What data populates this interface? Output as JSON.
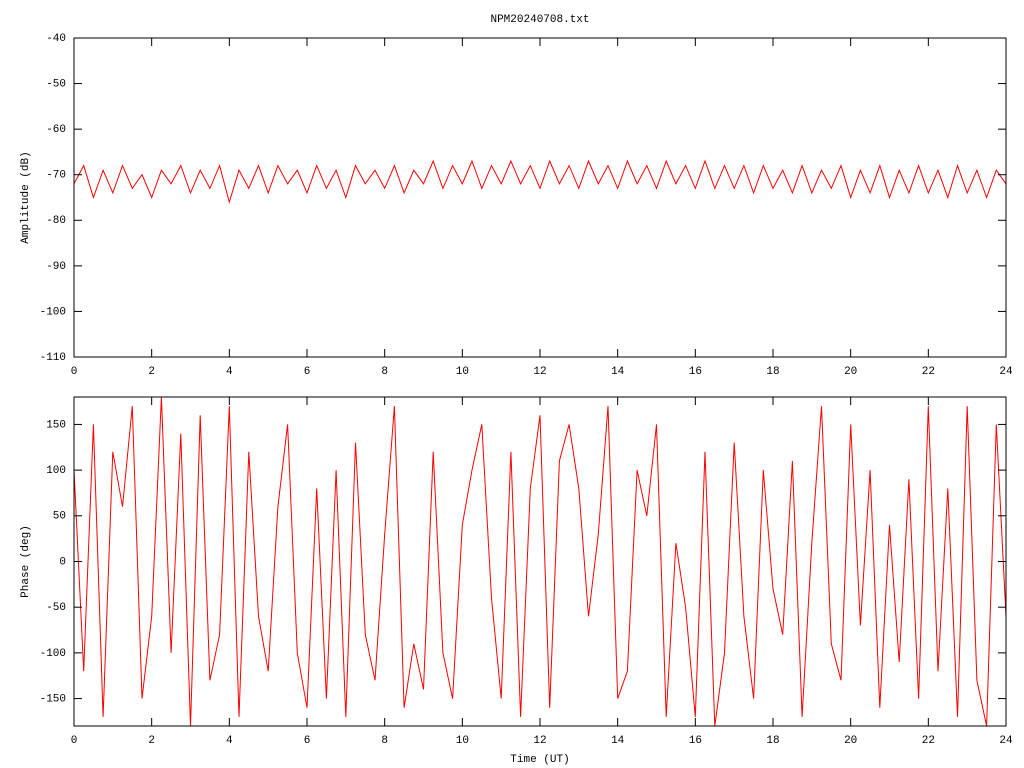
{
  "chart_data": [
    {
      "type": "line",
      "title": "NPM20240708.txt",
      "ylabel": "Amplitude (dB)",
      "xlim": [
        0,
        24
      ],
      "xticks": [
        0,
        2,
        4,
        6,
        8,
        10,
        12,
        14,
        16,
        18,
        20,
        22,
        24
      ],
      "ylim": [
        -110,
        -40
      ],
      "yticks": [
        -110,
        -100,
        -90,
        -80,
        -70,
        -60,
        -50,
        -40
      ],
      "x": [
        0,
        0.25,
        0.5,
        0.75,
        1,
        1.25,
        1.5,
        1.75,
        2,
        2.25,
        2.5,
        2.75,
        3,
        3.25,
        3.5,
        3.75,
        4,
        4.25,
        4.5,
        4.75,
        5,
        5.25,
        5.5,
        5.75,
        6,
        6.25,
        6.5,
        6.75,
        7,
        7.25,
        7.5,
        7.75,
        8,
        8.25,
        8.5,
        8.75,
        9,
        9.25,
        9.5,
        9.75,
        10,
        10.25,
        10.5,
        10.75,
        11,
        11.25,
        11.5,
        11.75,
        12,
        12.25,
        12.5,
        12.75,
        13,
        13.25,
        13.5,
        13.75,
        14,
        14.25,
        14.5,
        14.75,
        15,
        15.25,
        15.5,
        15.75,
        16,
        16.25,
        16.5,
        16.75,
        17,
        17.25,
        17.5,
        17.75,
        18,
        18.25,
        18.5,
        18.75,
        19,
        19.25,
        19.5,
        19.75,
        20,
        20.25,
        20.5,
        20.75,
        21,
        21.25,
        21.5,
        21.75,
        22,
        22.25,
        22.5,
        22.75,
        23,
        23.25,
        23.5,
        23.75,
        24
      ],
      "series": [
        {
          "color": "#ff0000",
          "values": [
            -72,
            -68,
            -75,
            -69,
            -74,
            -68,
            -73,
            -70,
            -75,
            -69,
            -72,
            -68,
            -74,
            -69,
            -73,
            -68,
            -76,
            -69,
            -73,
            -68,
            -74,
            -68,
            -72,
            -69,
            -74,
            -68,
            -73,
            -69,
            -75,
            -68,
            -72,
            -69,
            -73,
            -68,
            -74,
            -69,
            -72,
            -67,
            -73,
            -68,
            -72,
            -67,
            -73,
            -68,
            -72,
            -67,
            -72,
            -68,
            -73,
            -67,
            -72,
            -68,
            -73,
            -67,
            -72,
            -68,
            -73,
            -67,
            -72,
            -68,
            -73,
            -67,
            -72,
            -68,
            -73,
            -67,
            -73,
            -68,
            -73,
            -68,
            -74,
            -68,
            -73,
            -69,
            -74,
            -68,
            -74,
            -69,
            -73,
            -68,
            -75,
            -69,
            -74,
            -68,
            -75,
            -69,
            -74,
            -68,
            -74,
            -69,
            -75,
            -68,
            -74,
            -69,
            -75,
            -69,
            -72
          ]
        }
      ]
    },
    {
      "type": "line",
      "ylabel": "Phase (deg)",
      "xlabel": "Time (UT)",
      "xlim": [
        0,
        24
      ],
      "xticks": [
        0,
        2,
        4,
        6,
        8,
        10,
        12,
        14,
        16,
        18,
        20,
        22,
        24
      ],
      "ylim": [
        -180,
        180
      ],
      "yticks": [
        -150,
        -100,
        -50,
        0,
        50,
        100,
        150
      ],
      "x": [
        0,
        0.25,
        0.5,
        0.75,
        1,
        1.25,
        1.5,
        1.75,
        2,
        2.25,
        2.5,
        2.75,
        3,
        3.25,
        3.5,
        3.75,
        4,
        4.25,
        4.5,
        4.75,
        5,
        5.25,
        5.5,
        5.75,
        6,
        6.25,
        6.5,
        6.75,
        7,
        7.25,
        7.5,
        7.75,
        8,
        8.25,
        8.5,
        8.75,
        9,
        9.25,
        9.5,
        9.75,
        10,
        10.25,
        10.5,
        10.75,
        11,
        11.25,
        11.5,
        11.75,
        12,
        12.25,
        12.5,
        12.75,
        13,
        13.25,
        13.5,
        13.75,
        14,
        14.25,
        14.5,
        14.75,
        15,
        15.25,
        15.5,
        15.75,
        16,
        16.25,
        16.5,
        16.75,
        17,
        17.25,
        17.5,
        17.75,
        18,
        18.25,
        18.5,
        18.75,
        19,
        19.25,
        19.5,
        19.75,
        20,
        20.25,
        20.5,
        20.75,
        21,
        21.25,
        21.5,
        21.75,
        22,
        22.25,
        22.5,
        22.75,
        23,
        23.25,
        23.5,
        23.75,
        24
      ],
      "series": [
        {
          "color": "#ff0000",
          "values": [
            100,
            -120,
            150,
            -170,
            120,
            60,
            170,
            -150,
            -60,
            180,
            -100,
            140,
            -180,
            160,
            -130,
            -80,
            170,
            -170,
            120,
            -60,
            -120,
            60,
            150,
            -100,
            -160,
            80,
            -150,
            100,
            -170,
            130,
            -80,
            -130,
            30,
            170,
            -160,
            -90,
            -140,
            120,
            -100,
            -150,
            40,
            100,
            150,
            -40,
            -150,
            120,
            -170,
            80,
            160,
            -160,
            110,
            150,
            80,
            -60,
            30,
            170,
            -150,
            -120,
            100,
            50,
            150,
            -170,
            20,
            -50,
            -170,
            120,
            -180,
            -100,
            130,
            -60,
            -150,
            100,
            -30,
            -80,
            110,
            -170,
            20,
            170,
            -90,
            -130,
            150,
            -70,
            100,
            -160,
            40,
            -110,
            90,
            -150,
            170,
            -120,
            80,
            -170,
            170,
            -130,
            -180,
            150,
            -60
          ]
        }
      ]
    }
  ]
}
